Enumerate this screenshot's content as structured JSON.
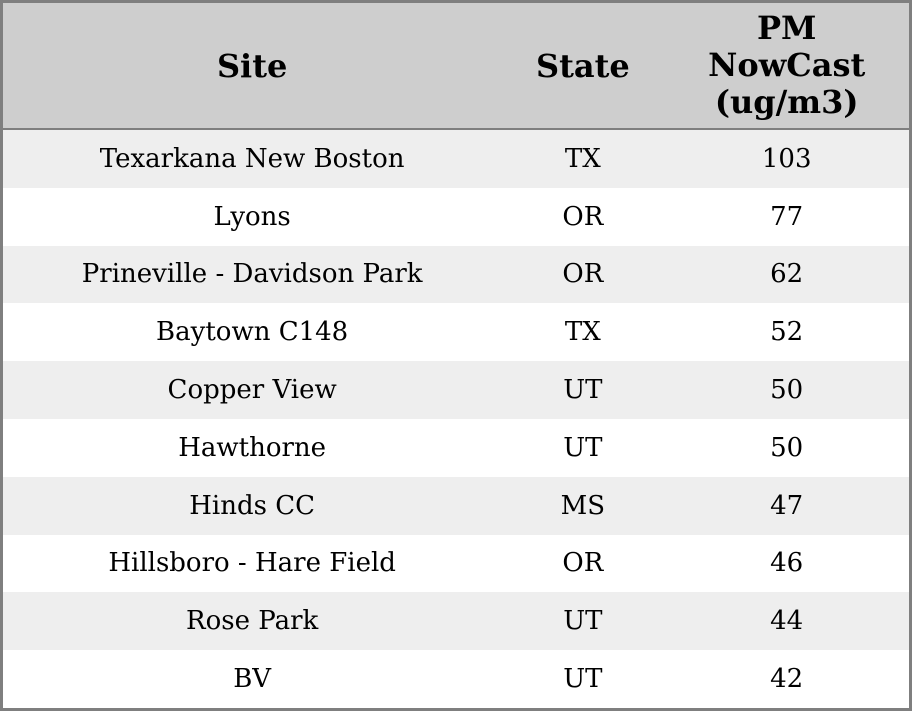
{
  "table": {
    "header": {
      "site": "Site",
      "state": "State",
      "pm_nowcast": "PM\nNowCast\n(ug/m3)"
    }
  },
  "chart_data": {
    "type": "table",
    "columns": [
      "Site",
      "State",
      "PM NowCast (ug/m3)"
    ],
    "rows": [
      [
        "Texarkana New Boston",
        "TX",
        103
      ],
      [
        "Lyons",
        "OR",
        77
      ],
      [
        "Prineville - Davidson Park",
        "OR",
        62
      ],
      [
        "Baytown C148",
        "TX",
        52
      ],
      [
        "Copper View",
        "UT",
        50
      ],
      [
        "Hawthorne",
        "UT",
        50
      ],
      [
        "Hinds CC",
        "MS",
        47
      ],
      [
        "Hillsboro - Hare Field",
        "OR",
        46
      ],
      [
        "Rose Park",
        "UT",
        44
      ],
      [
        "BV",
        "UT",
        42
      ]
    ],
    "layout": {
      "striped_rows": true,
      "stripe_on": "odd",
      "text_align": "center"
    }
  },
  "colors": {
    "header_background": "#cecece",
    "row_stripe": "#eeeeee",
    "row_background": "#ffffff",
    "border": "#7f7f7f",
    "text": "#000000"
  }
}
